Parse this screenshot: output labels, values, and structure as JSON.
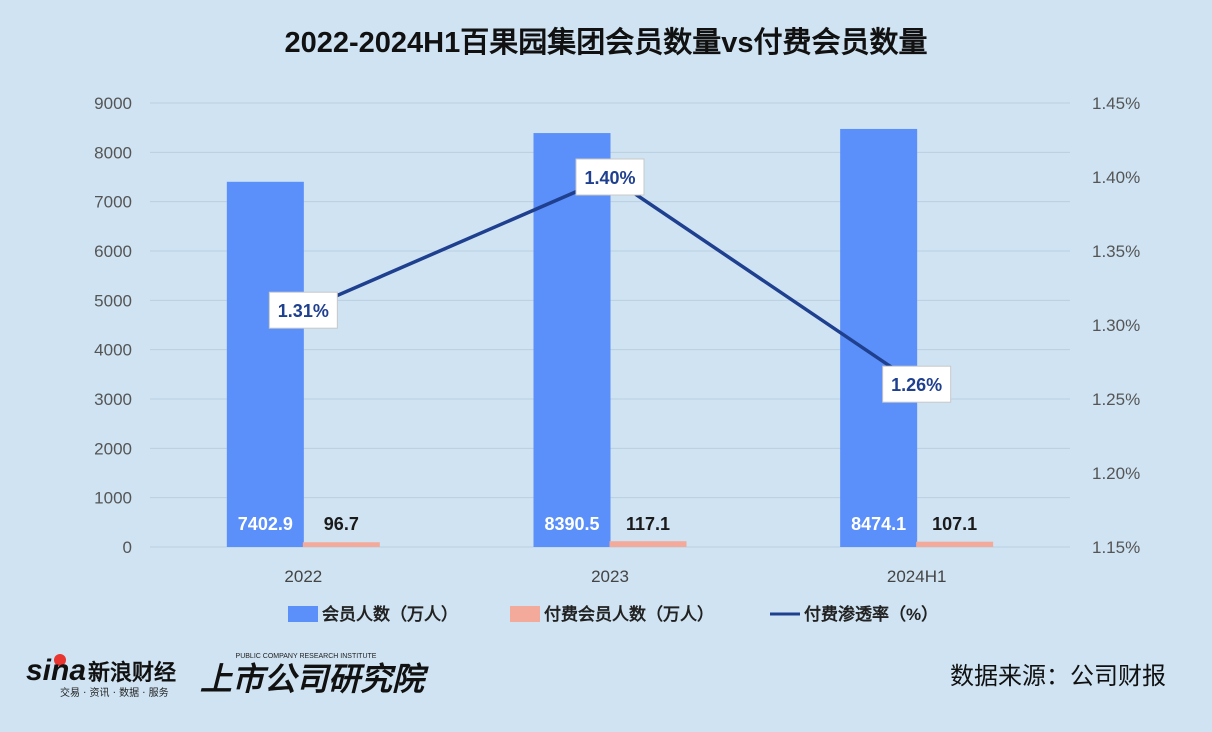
{
  "chart_data": {
    "type": "bar",
    "title": "2022-2024H1百果园集团会员数量vs付费会员数量",
    "categories": [
      "2022",
      "2023",
      "2024H1"
    ],
    "series": [
      {
        "name": "会员人数（万人）",
        "type": "bar",
        "axis": "left",
        "color": "#5b8ff9",
        "values": [
          7402.9,
          8390.5,
          8474.1
        ],
        "labels": [
          "7402.9",
          "8390.5",
          "8474.1"
        ]
      },
      {
        "name": "付费会员人数（万人）",
        "type": "bar",
        "axis": "left",
        "color": "#f4aa9a",
        "values": [
          96.7,
          117.1,
          107.1
        ],
        "labels": [
          "96.7",
          "117.1",
          "107.1"
        ]
      },
      {
        "name": "付费渗透率（%）",
        "type": "line",
        "axis": "right",
        "color": "#1f3f8f",
        "values": [
          1.31,
          1.4,
          1.26
        ],
        "labels": [
          "1.31%",
          "1.40%",
          "1.26%"
        ]
      }
    ],
    "y_left": {
      "min": 0,
      "max": 9000,
      "ticks": [
        "0",
        "1000",
        "2000",
        "3000",
        "4000",
        "5000",
        "6000",
        "7000",
        "8000",
        "9000"
      ]
    },
    "y_right": {
      "min": 1.15,
      "max": 1.45,
      "ticks": [
        "1.15%",
        "1.20%",
        "1.25%",
        "1.30%",
        "1.35%",
        "1.40%",
        "1.45%"
      ]
    },
    "grid": true,
    "legend_position": "bottom"
  },
  "footer": {
    "sina_logo": "sina新浪财经",
    "sina_tagline": "交易 · 资讯 · 数据 · 服务",
    "institute_logo": "上市公司研究院",
    "institute_tagline": "PUBLIC COMPANY RESEARCH INSTITUTE",
    "source": "数据来源：公司财报"
  }
}
